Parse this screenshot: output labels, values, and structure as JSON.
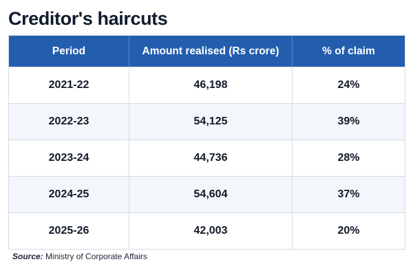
{
  "title": "Creditor's haircuts",
  "source": {
    "label": "Source:",
    "text": "Ministry of Corporate Affairs"
  },
  "colors": {
    "header_bg": "#235eae",
    "header_text": "#ffffff",
    "alt_row_bg": "#f3f7fc"
  },
  "chart_data": {
    "type": "table",
    "title": "Creditor's haircuts",
    "columns": [
      "Period",
      "Amount realised (Rs crore)",
      "% of claim"
    ],
    "rows": [
      [
        "2021-22",
        "46,198",
        "24%"
      ],
      [
        "2022-23",
        "54,125",
        "39%"
      ],
      [
        "2023-24",
        "44,736",
        "28%"
      ],
      [
        "2024-25",
        "54,604",
        "37%"
      ],
      [
        "2025-26",
        "42,003",
        "20%"
      ]
    ]
  }
}
